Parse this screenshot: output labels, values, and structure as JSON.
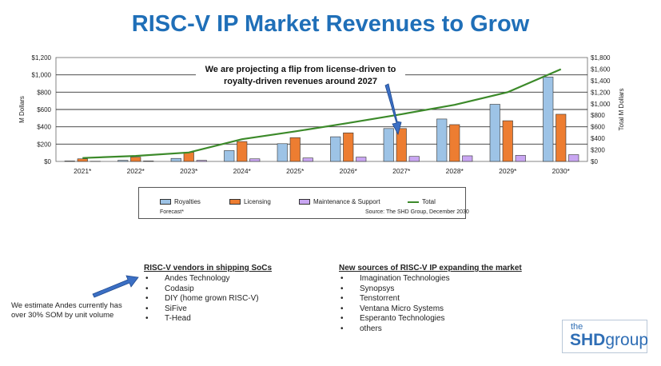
{
  "title": "RISC-V IP Market Revenues to Grow",
  "chart_data": {
    "type": "bar",
    "categories": [
      "2021*",
      "2022*",
      "2023*",
      "2024*",
      "2025*",
      "2026*",
      "2027*",
      "2028*",
      "2029*",
      "2030*"
    ],
    "series": [
      {
        "name": "Royalties",
        "color": "#9dc3e6",
        "values": [
          5,
          12,
          35,
          125,
          205,
          285,
          380,
          490,
          660,
          975
        ]
      },
      {
        "name": "Licensing",
        "color": "#ed7d31",
        "values": [
          30,
          50,
          105,
          230,
          275,
          330,
          380,
          425,
          470,
          545
        ]
      },
      {
        "name": "Maintenance & Support",
        "color": "#c9a6f2",
        "values": [
          2,
          5,
          12,
          30,
          40,
          50,
          58,
          65,
          70,
          78
        ]
      }
    ],
    "line_series": {
      "name": "Total",
      "color": "#3c8a2a",
      "axis": "right",
      "values": [
        60,
        95,
        155,
        385,
        520,
        665,
        818,
        980,
        1200,
        1598
      ]
    },
    "ylabel": "M Dollars",
    "y2label": "Total M Dollars",
    "ylim": [
      0,
      1200
    ],
    "y2lim": [
      0,
      1800
    ],
    "yticks": [
      "$0",
      "$200",
      "$400",
      "$600",
      "$800",
      "$1,000",
      "$1,200"
    ],
    "y2ticks": [
      "$0",
      "$200",
      "$400",
      "$600",
      "$800",
      "$1,000",
      "$1,200",
      "$1,400",
      "$1,600",
      "$1,800"
    ],
    "annotation": [
      "We are projecting a flip from license-driven to",
      "royalty-driven revenues around 2027"
    ],
    "legend_footnote": "Forecast*",
    "source": "Source: The SHD Group, December 2030",
    "grid": true
  },
  "vendors": {
    "heading": "RISC-V vendors in shipping SoCs",
    "items": [
      "Andes Technology",
      "Codasip",
      "DIY (home grown RISC-V)",
      "SiFive",
      "T-Head"
    ]
  },
  "new_sources": {
    "heading": "New sources of RISC-V IP expanding the market",
    "items": [
      "Imagination Technologies",
      "Synopsys",
      "Tenstorrent",
      "Ventana Micro Systems",
      "Esperanto Technologies",
      "others"
    ]
  },
  "note": [
    "We estimate Andes currently has",
    "over 30% SOM by unit volume"
  ],
  "logo": {
    "top": "the",
    "shd": "SHD",
    "group": "group"
  },
  "colors": {
    "title": "#1f6fb8",
    "arrow": "#3b6fc4"
  }
}
